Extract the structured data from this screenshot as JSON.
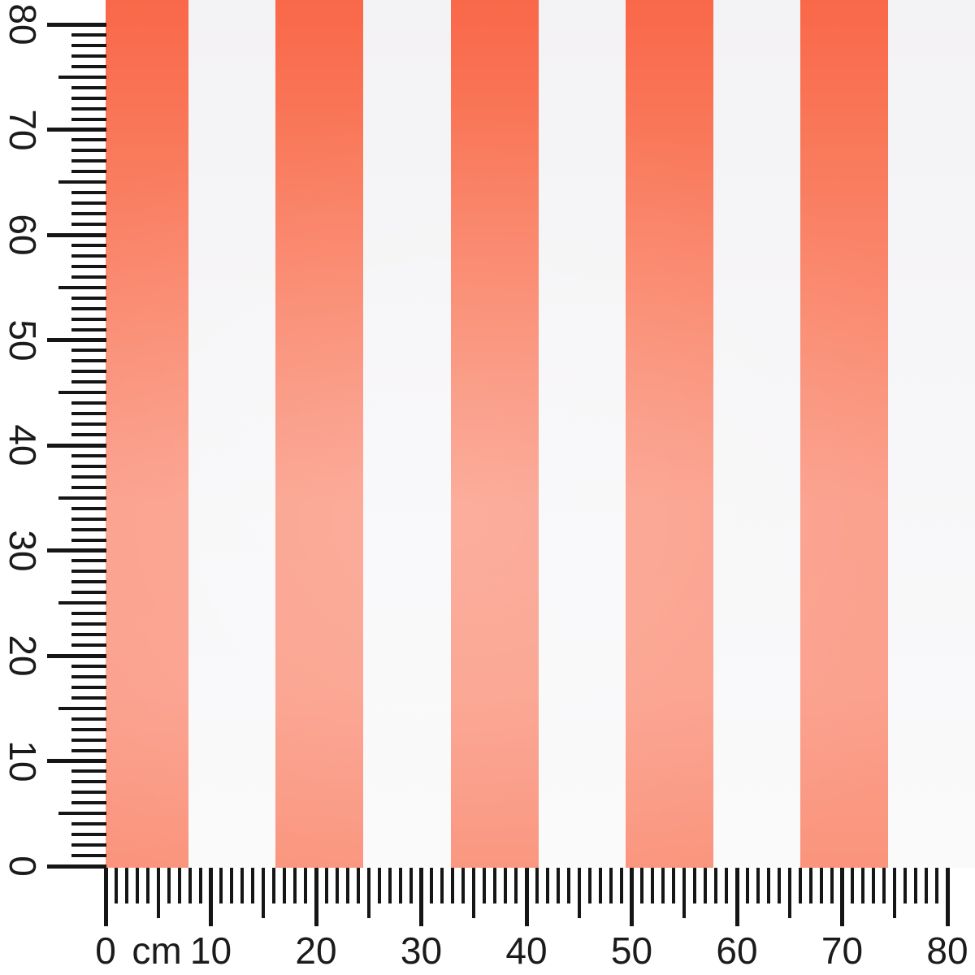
{
  "page": {
    "description": "Photo of coral-orange and white block-striped fabric measured by centimeter rulers along the left and bottom edges"
  },
  "fabric": {
    "stripe_count": 5,
    "colors": {
      "orange_top": "#f96849",
      "orange_upper": "#f97a5c",
      "orange_mid": "#fa8e75",
      "orange_lower": "#fb9e8a",
      "orange_deep": "#fb9f8b",
      "orange_bottom": "#fa947c",
      "white_top": "#f3f2f4",
      "white_mid": "#f7f6f8",
      "white_bottom": "#fafafb"
    }
  },
  "rulers": {
    "unit": "cm",
    "tick_color": "#151515",
    "label_color": "#1b1b1b",
    "left": {
      "labels": [
        "0",
        "10",
        "20",
        "30",
        "40",
        "50",
        "60",
        "70",
        "80"
      ]
    },
    "bottom": {
      "labels": [
        "0",
        "10",
        "20",
        "30",
        "40",
        "50",
        "60",
        "70",
        "80"
      ],
      "unit_label": "cm"
    }
  }
}
